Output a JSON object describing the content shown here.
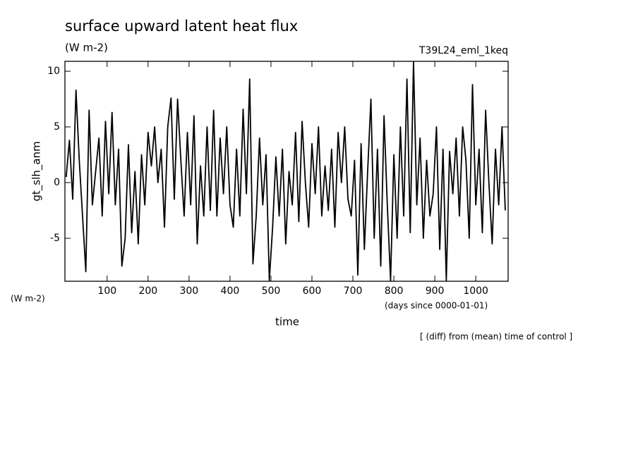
{
  "chart_data": {
    "type": "line",
    "title": "surface upward latent heat flux",
    "subtitle": "(W m-2)",
    "run_label": "T39L24_eml_1keq",
    "y_label": "gt_slh_anm",
    "y_unit": "(W m-2)",
    "x_label": "time",
    "x_unit": "(days since 0000-01-01)",
    "note": "[ (diff) from (mean) time of control ]",
    "x": [
      0,
      8,
      16,
      24,
      32,
      40,
      48,
      56,
      64,
      72,
      80,
      88,
      96,
      104,
      112,
      120,
      128,
      136,
      144,
      152,
      160,
      168,
      176,
      184,
      192,
      200,
      208,
      216,
      224,
      232,
      240,
      248,
      256,
      264,
      272,
      280,
      288,
      296,
      304,
      312,
      320,
      328,
      336,
      344,
      352,
      360,
      368,
      376,
      384,
      392,
      400,
      408,
      416,
      424,
      432,
      440,
      448,
      456,
      464,
      472,
      480,
      488,
      496,
      504,
      512,
      520,
      528,
      536,
      544,
      552,
      560,
      568,
      576,
      584,
      592,
      600,
      608,
      616,
      624,
      632,
      640,
      648,
      656,
      664,
      672,
      680,
      688,
      696,
      704,
      712,
      720,
      728,
      736,
      744,
      752,
      760,
      768,
      776,
      784,
      792,
      800,
      808,
      816,
      824,
      832,
      840,
      848,
      856,
      864,
      872,
      880,
      888,
      896,
      904,
      912,
      920,
      928,
      936,
      944,
      952,
      960,
      968,
      976,
      984,
      992,
      1000,
      1008,
      1016,
      1024,
      1032,
      1040,
      1048,
      1056,
      1064,
      1072
    ],
    "series": [
      {
        "name": "gt_slh_anm",
        "color": "#000000",
        "values": [
          0.5,
          3.8,
          -1.5,
          8.3,
          2,
          -3,
          -8,
          6.5,
          -2,
          1,
          4,
          -3,
          5.5,
          -1,
          6.3,
          -2,
          3,
          -7.5,
          -5,
          3.4,
          -4.5,
          1,
          -5.5,
          2.5,
          -2,
          4.5,
          1.5,
          5,
          0,
          3,
          -4,
          5,
          7.6,
          -1.5,
          7.5,
          2,
          -3,
          4.5,
          -2,
          6,
          -5.5,
          1.5,
          -3,
          5,
          -2.5,
          6.5,
          -3,
          4,
          -1,
          5,
          -2,
          -4,
          3,
          -3,
          6.6,
          -1,
          9.3,
          -7.3,
          -3,
          4,
          -2,
          2.5,
          -8.8,
          -4,
          2.3,
          -3,
          3,
          -5.5,
          1,
          -2,
          4.5,
          -3.5,
          5.5,
          0,
          -4,
          3.5,
          -1,
          5,
          -3,
          1.5,
          -2.5,
          3,
          -4,
          4.5,
          0,
          5,
          -1.5,
          -3,
          2,
          -8.3,
          3.5,
          -6,
          1,
          7.5,
          -5,
          3,
          -7.5,
          6,
          -2,
          -8.8,
          2.5,
          -5,
          5,
          -3,
          9.3,
          -4.5,
          10.9,
          -2,
          4,
          -5,
          2,
          -3,
          -1,
          5,
          -6,
          3,
          -8.8,
          2.8,
          -1,
          4,
          -3,
          5,
          2,
          -5,
          8.8,
          -2,
          3,
          -4.5,
          6.5,
          0,
          -5.5,
          3,
          -2,
          5,
          -2.5
        ]
      }
    ],
    "xlim": [
      -3,
      1079
    ],
    "ylim": [
      -8.86,
      10.89
    ],
    "xticks": [
      100,
      200,
      300,
      400,
      500,
      600,
      700,
      800,
      900,
      1000
    ],
    "yticks": [
      -5,
      0,
      5,
      10
    ]
  }
}
